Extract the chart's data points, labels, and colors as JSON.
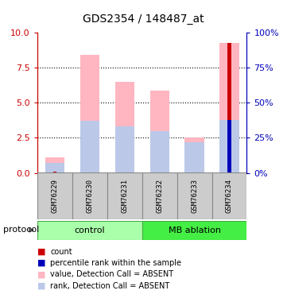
{
  "title": "GDS2354 / 148487_at",
  "samples": [
    "GSM76229",
    "GSM76230",
    "GSM76231",
    "GSM76232",
    "GSM76233",
    "GSM76234"
  ],
  "bar_color_absent": "#FFB6C1",
  "bar_color_rank_absent": "#BBC8E8",
  "bar_color_count": "#CC0000",
  "bar_color_rank": "#0000BB",
  "value_absent": [
    1.1,
    8.4,
    6.5,
    5.9,
    2.5,
    9.3
  ],
  "rank_absent": [
    0.7,
    3.7,
    3.3,
    3.0,
    2.2,
    3.8
  ],
  "count_values": [
    0.08,
    0.0,
    0.0,
    0.0,
    0.0,
    9.3
  ],
  "rank_values": [
    0.0,
    0.0,
    0.0,
    0.0,
    0.0,
    3.8
  ],
  "ylim_left": [
    0,
    10
  ],
  "ylim_right": [
    0,
    100
  ],
  "yticks_left": [
    0,
    2.5,
    5,
    7.5,
    10
  ],
  "yticks_right": [
    0,
    25,
    50,
    75,
    100
  ],
  "left_axis_color": "#CC0000",
  "right_axis_color": "#0000BB",
  "control_color": "#AAFFAA",
  "mb_color": "#44EE44",
  "group_border": "#44AA44",
  "sample_bg": "#CCCCCC",
  "sample_border": "#888888"
}
